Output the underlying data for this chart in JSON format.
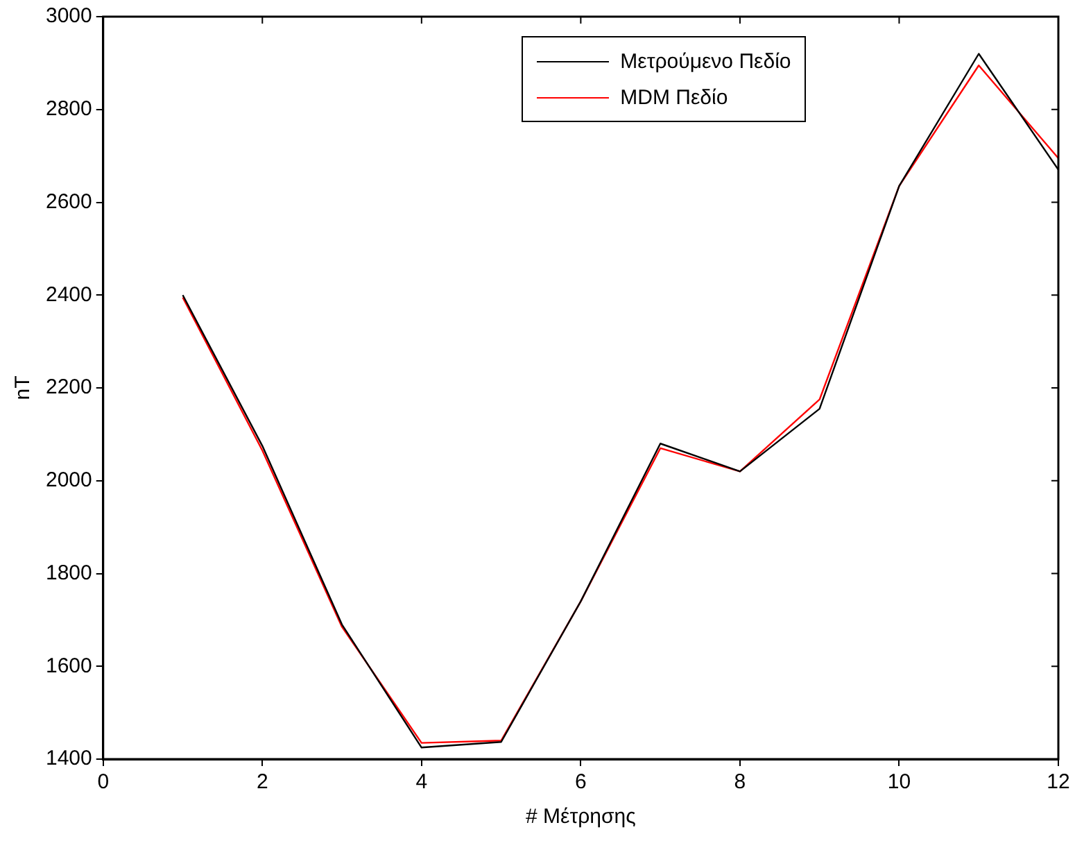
{
  "chart_data": {
    "type": "line",
    "xlabel": "# Μέτρησης",
    "ylabel": "nT",
    "x": [
      1,
      2,
      3,
      4,
      5,
      6,
      7,
      8,
      9,
      10,
      11,
      12
    ],
    "series": [
      {
        "name": "Μετρούμενο Πεδίο",
        "color": "#000000",
        "values": [
          2400,
          2075,
          1690,
          1425,
          1437,
          1740,
          2080,
          2020,
          2155,
          2635,
          2920,
          2670
        ]
      },
      {
        "name": "MDM Πεδίο",
        "color": "#ff0000",
        "values": [
          2395,
          2065,
          1685,
          1435,
          1440,
          1740,
          2070,
          2020,
          2175,
          2635,
          2895,
          2695
        ]
      }
    ],
    "xlim": [
      0,
      12
    ],
    "xticks": [
      0,
      2,
      4,
      6,
      8,
      10,
      12
    ],
    "ylim": [
      1400,
      3000
    ],
    "yticks": [
      1400,
      1600,
      1800,
      2000,
      2200,
      2400,
      2600,
      2800,
      3000
    ],
    "grid": false,
    "legend": "top",
    "marker": "none",
    "line_style": "solid"
  }
}
